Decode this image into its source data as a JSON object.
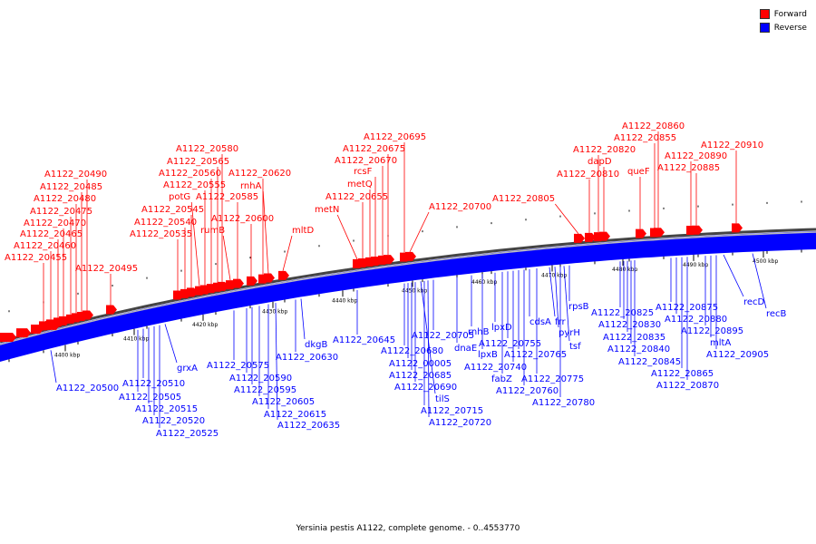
{
  "legend": {
    "forward_label": "Forward",
    "reverse_label": "Reverse",
    "forward_color": "#ff0000",
    "reverse_color": "#0000ff"
  },
  "caption": "Yersinia pestis A1122, complete genome. - 0..4553770",
  "scale_labels": [
    "4400 kbp",
    "4410 kbp",
    "4420 kbp",
    "4430 kbp",
    "4440 kbp",
    "4450 kbp",
    "4460 kbp",
    "4470 kbp",
    "4480 kbp",
    "4490 kbp",
    "4500 kbp"
  ],
  "forward_genes": [
    "A1122_20455",
    "A1122_20460",
    "A1122_20465",
    "A1122_20470",
    "A1122_20475",
    "A1122_20480",
    "A1122_20485",
    "A1122_20490",
    "A1122_20495",
    "A1122_20535",
    "A1122_20540",
    "A1122_20545",
    "potG",
    "A1122_20555",
    "A1122_20560",
    "A1122_20565",
    "A1122_20580",
    "rumB",
    "A1122_20585",
    "A1122_20600",
    "rnhA",
    "A1122_20620",
    "mltD",
    "metN",
    "A1122_20655",
    "metQ",
    "rcsF",
    "A1122_20670",
    "A1122_20675",
    "A1122_20695",
    "A1122_20700",
    "A1122_20805",
    "A1122_20810",
    "A1122_20820",
    "dapD",
    "A1122_20855",
    "A1122_20860",
    "queF",
    "A1122_20885",
    "A1122_20890",
    "A1122_20910"
  ],
  "reverse_genes": [
    "A1122_20500",
    "A1122_20510",
    "A1122_20505",
    "A1122_20515",
    "A1122_20520",
    "A1122_20525",
    "grxA",
    "A1122_20575",
    "A1122_20590",
    "A1122_20595",
    "A1122_20605",
    "A1122_20615",
    "A1122_20635",
    "A1122_20630",
    "dkgB",
    "A1122_20645",
    "A1122_20680",
    "A1122_00005",
    "A1122_20685",
    "A1122_20690",
    "tilS",
    "A1122_20715",
    "A1122_20720",
    "A1122_20705",
    "dnaE",
    "rnhB",
    "lpxB",
    "lpxD",
    "fabZ",
    "A1122_20755",
    "A1122_20740",
    "A1122_20765",
    "A1122_20760",
    "cdsA",
    "A1122_20775",
    "frr",
    "pyrH",
    "A1122_20780",
    "tsf",
    "rpsB",
    "A1122_20825",
    "A1122_20830",
    "A1122_20835",
    "A1122_20840",
    "A1122_20845",
    "A1122_20875",
    "A1122_20880",
    "A1122_20865",
    "A1122_20870",
    "A1122_20895",
    "mltA",
    "A1122_20905",
    "recD",
    "recB"
  ]
}
